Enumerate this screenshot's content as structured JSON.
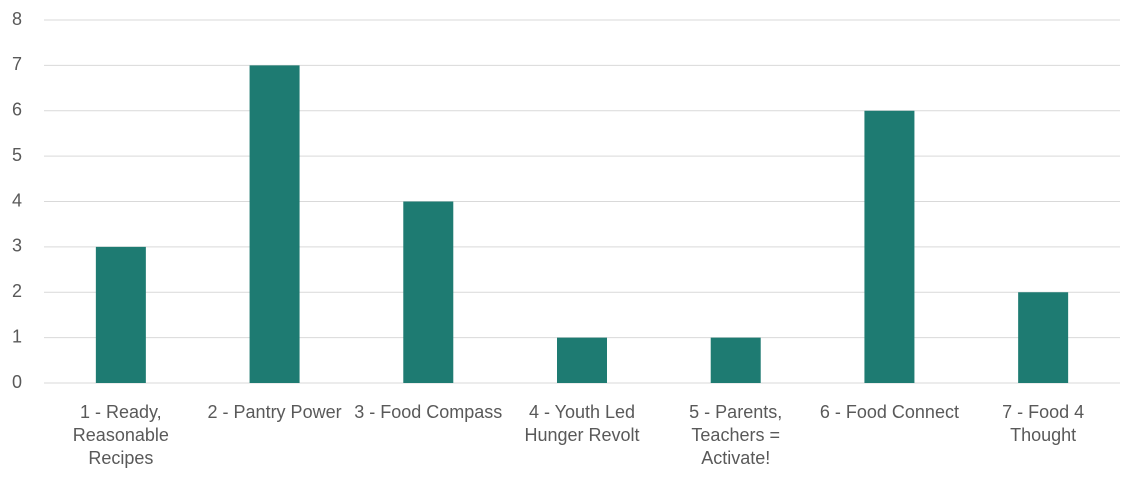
{
  "chart_data": {
    "type": "bar",
    "categories": [
      "1 - Ready, Reasonable Recipes",
      "2 - Pantry Power",
      "3 - Food Compass",
      "4 - Youth Led Hunger Revolt",
      "5 - Parents, Teachers = Activate!",
      "6 - Food Connect",
      "7 - Food 4 Thought"
    ],
    "values": [
      3,
      7,
      4,
      1,
      1,
      6,
      2
    ],
    "color": "#1e7b72",
    "ylim": [
      0,
      8
    ],
    "yticks": [
      0,
      1,
      2,
      3,
      4,
      5,
      6,
      7,
      8
    ],
    "grid": true
  }
}
